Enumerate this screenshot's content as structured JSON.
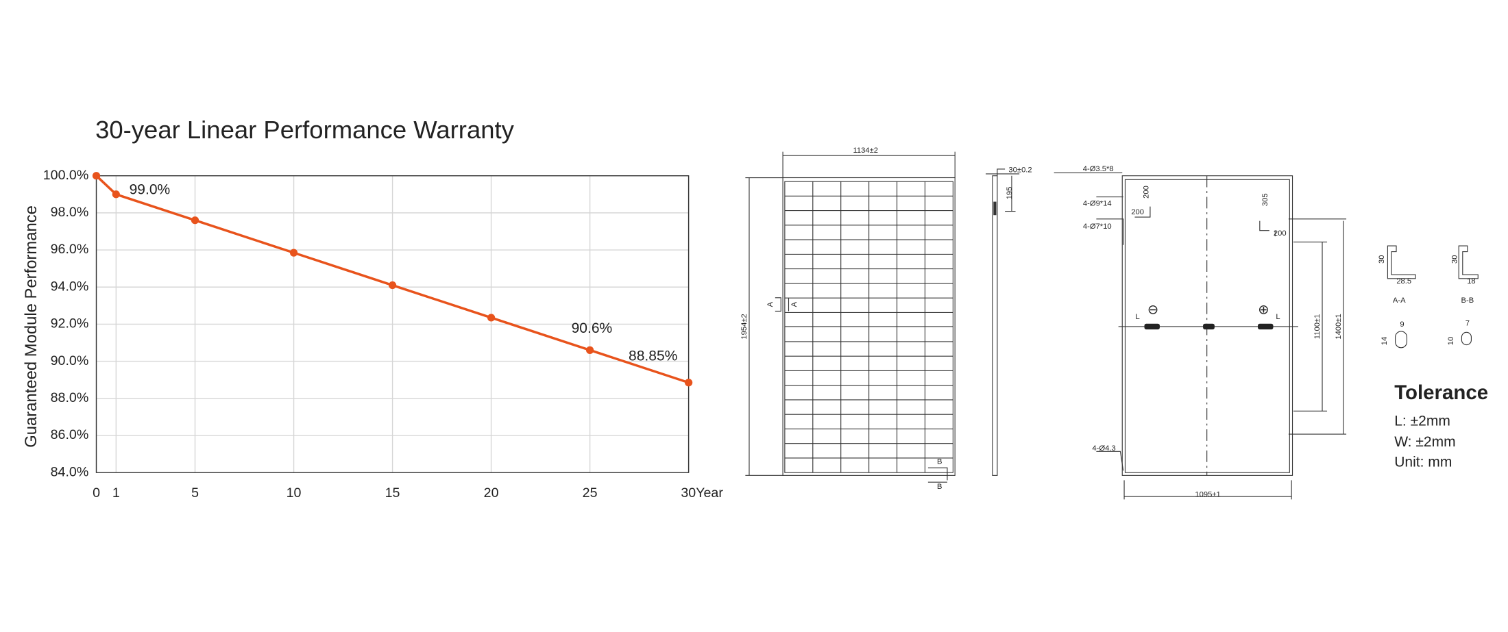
{
  "chart_data": {
    "type": "line",
    "title": "30-year Linear Performance Warranty",
    "y_label": "Guaranteed Module Performance",
    "x": [
      0,
      1,
      5,
      10,
      15,
      20,
      25,
      30
    ],
    "series": [
      {
        "color": "#e8531c",
        "values": [
          100,
          99.0,
          97.6,
          95.85,
          94.1,
          92.35,
          90.6,
          88.85
        ],
        "value_labels": [
          null,
          "99.0%",
          null,
          null,
          null,
          null,
          "90.6%",
          "88.85%"
        ]
      }
    ],
    "xlim": [
      0,
      30
    ],
    "xticks": [
      0,
      1,
      5,
      10,
      15,
      20,
      25,
      {
        "value": 30,
        "label": "30Year"
      }
    ],
    "ylim": [
      84,
      100
    ],
    "yticks": [
      {
        "value": 84,
        "label": "84.0%"
      },
      {
        "value": 86,
        "label": "86.0%"
      },
      {
        "value": 88,
        "label": "88.0%"
      },
      {
        "value": 90,
        "label": "90.0%"
      },
      {
        "value": 92,
        "label": "92.0%"
      },
      {
        "value": 94,
        "label": "94.0%"
      },
      {
        "value": 96,
        "label": "96.0%"
      },
      {
        "value": 98,
        "label": "98.0%"
      },
      {
        "value": 100,
        "label": "100.0%"
      }
    ],
    "grid": true
  },
  "drawings": {
    "front_view": {
      "width": "1134±2",
      "height": "1954±2",
      "section_a": [
        "A",
        "A"
      ],
      "section_b": [
        "B",
        "B"
      ]
    },
    "side_view": {
      "thickness": "30±0.2",
      "offset": "195"
    },
    "back_view": {
      "hole_1": "4-Ø3.5*8",
      "hole_2": "4-Ø9*14",
      "hole_3": "4-Ø7*10",
      "hole_4": "4-Ø4.3",
      "dim_200_a": "200",
      "dim_200_b": "200",
      "dim_305": "305",
      "dim_200_c": "200",
      "dim_1100": "1100±1",
      "dim_1400": "1400±1",
      "width": "1095±1",
      "cable_l_left": "L",
      "cable_l_right": "L",
      "negative": "⊖",
      "positive": "⊕"
    },
    "profiles": {
      "aa_height": "30",
      "aa_width": "28.5",
      "aa_name": "A-A",
      "bb_height": "30",
      "bb_width": "18",
      "bb_name": "B-B",
      "hole_a_w": "9",
      "hole_a_h": "14",
      "hole_b_w": "7",
      "hole_b_h": "10"
    },
    "tolerance": {
      "title": "Tolerance",
      "lines": [
        "L: ±2mm",
        "W: ±2mm",
        "Unit: mm"
      ]
    }
  }
}
